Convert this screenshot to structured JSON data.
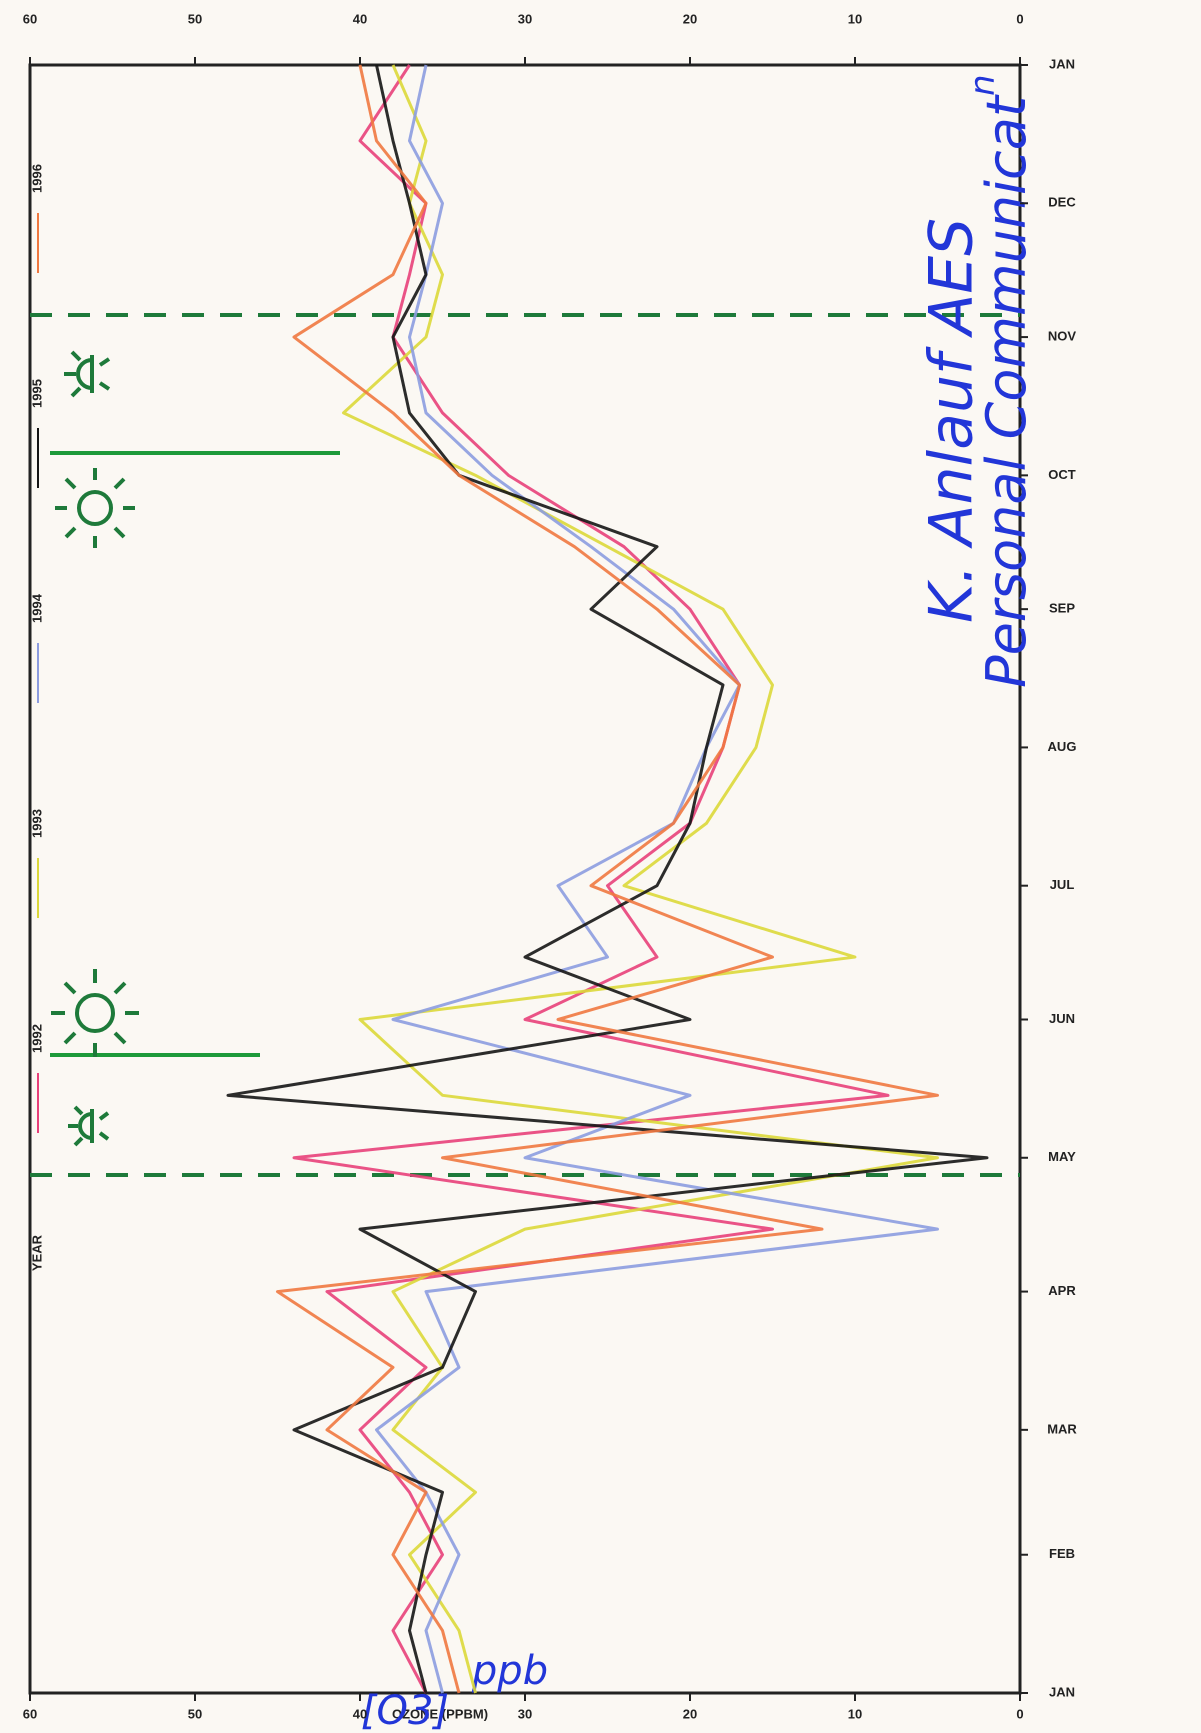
{
  "chart_data": {
    "type": "line",
    "y_label": "OZONE (PPBM)",
    "legend_title": "YEAR",
    "annotations": [
      "K. Anlauf AES",
      "Personal Communicat",
      "n",
      "[O3]",
      "ppb"
    ],
    "x": [
      1,
      15,
      32,
      46,
      60,
      74,
      91,
      105,
      121,
      135,
      152,
      166,
      182,
      196,
      213,
      227,
      244,
      258,
      274,
      288,
      305,
      319,
      335,
      349,
      366
    ],
    "xlim": [
      1,
      366
    ],
    "xticks": [
      {
        "value": 1,
        "label": "JAN"
      },
      {
        "value": 32,
        "label": "FEB"
      },
      {
        "value": 60,
        "label": "MAR"
      },
      {
        "value": 91,
        "label": "APR"
      },
      {
        "value": 121,
        "label": "MAY"
      },
      {
        "value": 152,
        "label": "JUN"
      },
      {
        "value": 182,
        "label": "JUL"
      },
      {
        "value": 213,
        "label": "AUG"
      },
      {
        "value": 244,
        "label": "SEP"
      },
      {
        "value": 274,
        "label": "OCT"
      },
      {
        "value": 305,
        "label": "NOV"
      },
      {
        "value": 335,
        "label": "DEC"
      },
      {
        "value": 366,
        "label": "JAN"
      }
    ],
    "ylim": [
      0,
      60
    ],
    "yticks": [
      0,
      10,
      20,
      30,
      40,
      50,
      60
    ],
    "series": [
      {
        "name": "1992",
        "color": "#e8407a",
        "values": [
          36,
          38,
          35,
          37,
          40,
          36,
          42,
          15,
          44,
          8,
          30,
          22,
          25,
          20,
          18,
          17,
          20,
          24,
          31,
          35,
          38,
          37,
          36,
          40,
          37
        ]
      },
      {
        "name": "1993",
        "color": "#dcd83a",
        "values": [
          33,
          34,
          37,
          33,
          38,
          35,
          38,
          30,
          5,
          35,
          40,
          10,
          24,
          19,
          16,
          15,
          18,
          25,
          33,
          41,
          36,
          35,
          37,
          36,
          38
        ]
      },
      {
        "name": "1994",
        "color": "#8c9ce0",
        "values": [
          35,
          36,
          34,
          36,
          39,
          34,
          36,
          5,
          30,
          20,
          38,
          25,
          28,
          21,
          19,
          17,
          21,
          26,
          32,
          36,
          37,
          36,
          35,
          37,
          36
        ]
      },
      {
        "name": "1995",
        "color": "#151515",
        "values": [
          36,
          37,
          36,
          35,
          44,
          35,
          33,
          40,
          2,
          48,
          20,
          30,
          22,
          20,
          19,
          18,
          26,
          22,
          34,
          37,
          38,
          36,
          37,
          38,
          39
        ]
      },
      {
        "name": "1996",
        "color": "#f07840",
        "values": [
          34,
          35,
          38,
          36,
          42,
          38,
          45,
          12,
          35,
          5,
          28,
          15,
          26,
          21,
          18,
          17,
          22,
          27,
          34,
          38,
          44,
          38,
          36,
          39,
          40
        ]
      }
    ]
  }
}
